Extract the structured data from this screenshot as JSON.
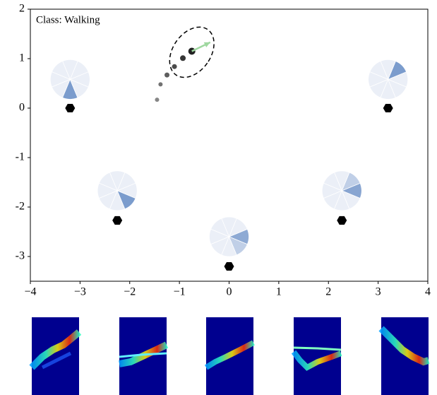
{
  "chart_data": {
    "type": "scatter",
    "annotation": "Class: Walking",
    "xlim": [
      -4,
      4
    ],
    "ylim": [
      -3.5,
      2
    ],
    "xticks": [
      {
        "value": -4,
        "label": "−4"
      },
      {
        "value": -3,
        "label": "−3"
      },
      {
        "value": -2,
        "label": "−2"
      },
      {
        "value": -1,
        "label": "−1"
      },
      0,
      1,
      2,
      3,
      4
    ],
    "yticks": [
      2,
      1,
      0,
      -1,
      -2,
      -3
    ],
    "trajectory": {
      "color": "#222222",
      "x": [
        -1.45,
        -1.38,
        -1.25,
        -1.1,
        -0.93,
        -0.75
      ],
      "y": [
        0.17,
        0.48,
        0.67,
        0.84,
        1.01,
        1.15
      ],
      "sizes": [
        3,
        3,
        3.5,
        3.5,
        4,
        5
      ]
    },
    "uncertainty": {
      "x": -0.75,
      "y": 1.13,
      "rx": 0.38,
      "ry": 0.56,
      "angle": 35
    },
    "heading": {
      "color": "#9fd8a0",
      "x": [
        -0.75,
        -0.38
      ],
      "y": [
        1.15,
        1.33
      ]
    },
    "sensors": {
      "color": "#000000",
      "x": [
        -3.2,
        3.2,
        -2.25,
        2.27,
        0
      ],
      "y": [
        0,
        0,
        -2.27,
        -2.27,
        -3.2
      ]
    },
    "pies": {
      "x": [
        -3.2,
        3.2,
        -2.25,
        2.27,
        0
      ],
      "y": [
        0.58,
        0.58,
        -1.67,
        -1.67,
        -2.6
      ],
      "values": [
        [
          0,
          0,
          0,
          0,
          0,
          0,
          0.9,
          0
        ],
        [
          0,
          0.9,
          0,
          0,
          0,
          0,
          0,
          0
        ],
        [
          0,
          0,
          0,
          0,
          0,
          0,
          0,
          0.9
        ],
        [
          0.8,
          0.35,
          0,
          0,
          0,
          0,
          0,
          0
        ],
        [
          0.75,
          0,
          0,
          0,
          0,
          0,
          0,
          0.35
        ]
      ]
    }
  }
}
